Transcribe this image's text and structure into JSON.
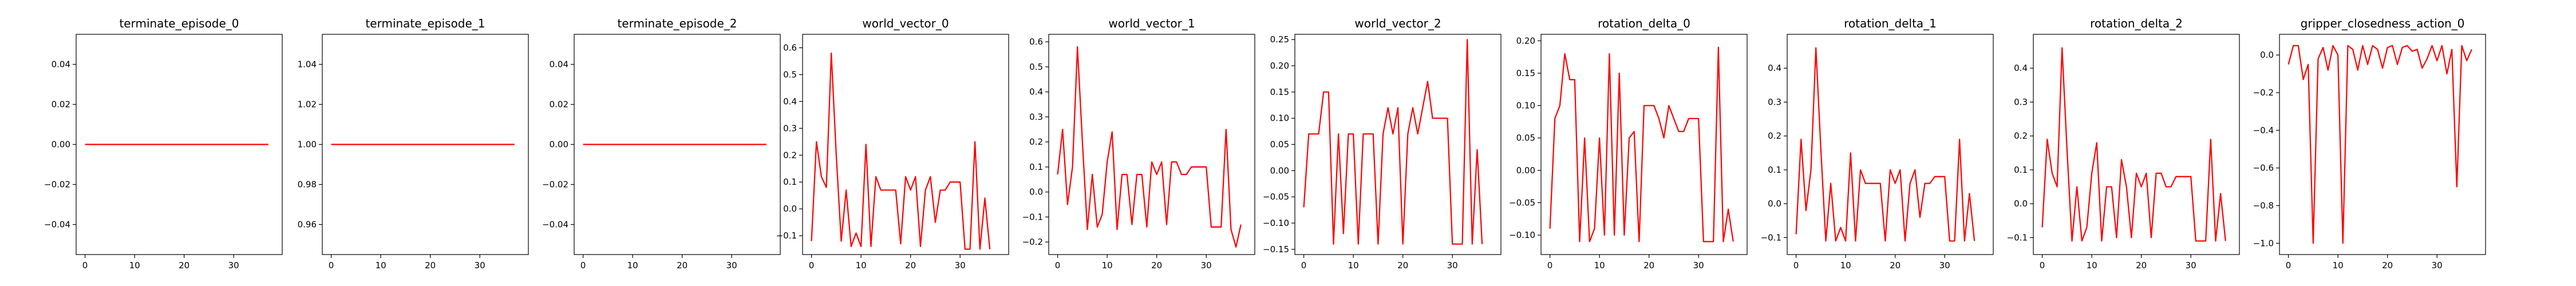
{
  "figure": {
    "background": "#ffffff",
    "line_color": "#ff0000"
  },
  "chart_data": [
    {
      "type": "line",
      "title": "terminate_episode_0",
      "xlim": [
        -1.8,
        39.8
      ],
      "ylim": [
        -0.055,
        0.055
      ],
      "xticks": [
        0,
        10,
        20,
        30
      ],
      "yticks": [
        -0.04,
        -0.02,
        0.0,
        0.02,
        0.04
      ],
      "ytick_labels": [
        "−0.04",
        "−0.02",
        "0.00",
        "0.02",
        "0.04"
      ],
      "series": [
        {
          "color": "#ff0000",
          "values": [
            0,
            0,
            0,
            0,
            0,
            0,
            0,
            0,
            0,
            0,
            0,
            0,
            0,
            0,
            0,
            0,
            0,
            0,
            0,
            0,
            0,
            0,
            0,
            0,
            0,
            0,
            0,
            0,
            0,
            0,
            0,
            0,
            0,
            0,
            0,
            0,
            0,
            0
          ]
        }
      ]
    },
    {
      "type": "line",
      "title": "terminate_episode_1",
      "xlim": [
        -1.8,
        39.8
      ],
      "ylim": [
        0.945,
        1.055
      ],
      "xticks": [
        0,
        10,
        20,
        30
      ],
      "yticks": [
        0.96,
        0.98,
        1.0,
        1.02,
        1.04
      ],
      "ytick_labels": [
        "0.96",
        "0.98",
        "1.00",
        "1.02",
        "1.04"
      ],
      "series": [
        {
          "color": "#ff0000",
          "values": [
            1,
            1,
            1,
            1,
            1,
            1,
            1,
            1,
            1,
            1,
            1,
            1,
            1,
            1,
            1,
            1,
            1,
            1,
            1,
            1,
            1,
            1,
            1,
            1,
            1,
            1,
            1,
            1,
            1,
            1,
            1,
            1,
            1,
            1,
            1,
            1,
            1,
            1
          ]
        }
      ]
    },
    {
      "type": "line",
      "title": "terminate_episode_2",
      "xlim": [
        -1.8,
        39.8
      ],
      "ylim": [
        -0.055,
        0.055
      ],
      "xticks": [
        0,
        10,
        20,
        30
      ],
      "yticks": [
        -0.04,
        -0.02,
        0.0,
        0.02,
        0.04
      ],
      "ytick_labels": [
        "−0.04",
        "−0.02",
        "0.00",
        "0.02",
        "0.04"
      ],
      "series": [
        {
          "color": "#ff0000",
          "values": [
            0,
            0,
            0,
            0,
            0,
            0,
            0,
            0,
            0,
            0,
            0,
            0,
            0,
            0,
            0,
            0,
            0,
            0,
            0,
            0,
            0,
            0,
            0,
            0,
            0,
            0,
            0,
            0,
            0,
            0,
            0,
            0,
            0,
            0,
            0,
            0,
            0,
            0
          ]
        }
      ]
    },
    {
      "type": "line",
      "title": "world_vector_0",
      "xlim": [
        -1.8,
        39.8
      ],
      "ylim": [
        -0.17,
        0.65
      ],
      "xticks": [
        0,
        10,
        20,
        30
      ],
      "yticks": [
        -0.1,
        0.0,
        0.1,
        0.2,
        0.3,
        0.4,
        0.5,
        0.6
      ],
      "ytick_labels": [
        "−0.1",
        "0.0",
        "0.1",
        "0.2",
        "0.3",
        "0.4",
        "0.5",
        "0.6"
      ],
      "series": [
        {
          "color": "#ff0000",
          "values": [
            -0.12,
            0.25,
            0.12,
            0.08,
            0.58,
            0.2,
            -0.12,
            0.07,
            -0.14,
            -0.09,
            -0.14,
            0.24,
            -0.14,
            0.12,
            0.07,
            0.07,
            0.07,
            0.07,
            -0.13,
            0.12,
            0.07,
            0.12,
            -0.14,
            0.07,
            0.12,
            -0.05,
            0.07,
            0.07,
            0.1,
            0.1,
            0.1,
            -0.15,
            -0.15,
            0.25,
            -0.15,
            0.04,
            -0.15
          ]
        }
      ]
    },
    {
      "type": "line",
      "title": "world_vector_1",
      "xlim": [
        -1.8,
        39.8
      ],
      "ylim": [
        -0.25,
        0.63
      ],
      "xticks": [
        0,
        10,
        20,
        30
      ],
      "yticks": [
        -0.2,
        -0.1,
        0.0,
        0.1,
        0.2,
        0.3,
        0.4,
        0.5,
        0.6
      ],
      "ytick_labels": [
        "−0.2",
        "−0.1",
        "0.0",
        "0.1",
        "0.2",
        "0.3",
        "0.4",
        "0.5",
        "0.6"
      ],
      "series": [
        {
          "color": "#ff0000",
          "values": [
            0.07,
            0.25,
            -0.05,
            0.1,
            0.58,
            0.2,
            -0.15,
            0.07,
            -0.14,
            -0.09,
            0.12,
            0.24,
            -0.15,
            0.07,
            0.07,
            -0.13,
            0.07,
            0.07,
            -0.14,
            0.12,
            0.07,
            0.12,
            -0.13,
            0.12,
            0.12,
            0.07,
            0.07,
            0.1,
            0.1,
            0.1,
            0.1,
            -0.14,
            -0.14,
            -0.14,
            0.25,
            -0.15,
            -0.22,
            -0.13
          ]
        }
      ]
    },
    {
      "type": "line",
      "title": "world_vector_2",
      "xlim": [
        -1.8,
        39.8
      ],
      "ylim": [
        -0.16,
        0.26
      ],
      "xticks": [
        0,
        10,
        20,
        30
      ],
      "yticks": [
        -0.15,
        -0.1,
        -0.05,
        0.0,
        0.05,
        0.1,
        0.15,
        0.2,
        0.25
      ],
      "ytick_labels": [
        "−0.15",
        "−0.10",
        "−0.05",
        "0.00",
        "0.05",
        "0.10",
        "0.15",
        "0.20",
        "0.25"
      ],
      "series": [
        {
          "color": "#ff0000",
          "values": [
            -0.07,
            0.07,
            0.07,
            0.07,
            0.15,
            0.15,
            -0.14,
            0.07,
            -0.12,
            0.07,
            0.07,
            -0.14,
            0.07,
            0.07,
            0.07,
            -0.14,
            0.07,
            0.12,
            0.07,
            0.12,
            -0.14,
            0.07,
            0.12,
            0.07,
            0.12,
            0.17,
            0.1,
            0.1,
            0.1,
            0.1,
            -0.14,
            -0.14,
            -0.14,
            0.25,
            -0.14,
            0.04,
            -0.14
          ]
        }
      ]
    },
    {
      "type": "line",
      "title": "rotation_delta_0",
      "xlim": [
        -1.8,
        39.8
      ],
      "ylim": [
        -0.13,
        0.21
      ],
      "xticks": [
        0,
        10,
        20,
        30
      ],
      "yticks": [
        -0.1,
        -0.05,
        0.0,
        0.05,
        0.1,
        0.15,
        0.2
      ],
      "ytick_labels": [
        "−0.10",
        "−0.05",
        "0.00",
        "0.05",
        "0.10",
        "0.15",
        "0.20"
      ],
      "series": [
        {
          "color": "#ff0000",
          "values": [
            -0.09,
            0.08,
            0.1,
            0.18,
            0.14,
            0.14,
            -0.11,
            0.05,
            -0.11,
            -0.09,
            0.05,
            -0.1,
            0.18,
            -0.1,
            0.15,
            -0.1,
            0.05,
            0.06,
            -0.11,
            0.1,
            0.1,
            0.1,
            0.08,
            0.05,
            0.1,
            0.08,
            0.06,
            0.06,
            0.08,
            0.08,
            0.08,
            -0.11,
            -0.11,
            -0.11,
            0.19,
            -0.11,
            -0.06,
            -0.11
          ]
        }
      ]
    },
    {
      "type": "line",
      "title": "rotation_delta_1",
      "xlim": [
        -1.8,
        39.8
      ],
      "ylim": [
        -0.15,
        0.5
      ],
      "xticks": [
        0,
        10,
        20,
        30
      ],
      "yticks": [
        -0.1,
        0.0,
        0.1,
        0.2,
        0.3,
        0.4
      ],
      "ytick_labels": [
        "−0.1",
        "0.0",
        "0.1",
        "0.2",
        "0.3",
        "0.4"
      ],
      "series": [
        {
          "color": "#ff0000",
          "values": [
            -0.09,
            0.19,
            -0.02,
            0.1,
            0.46,
            0.16,
            -0.11,
            0.06,
            -0.11,
            -0.07,
            -0.11,
            0.15,
            -0.11,
            0.1,
            0.06,
            0.06,
            0.06,
            0.06,
            -0.11,
            0.1,
            0.06,
            0.1,
            -0.11,
            0.06,
            0.1,
            -0.04,
            0.06,
            0.06,
            0.08,
            0.08,
            0.08,
            -0.11,
            -0.11,
            0.19,
            -0.11,
            0.03,
            -0.11
          ]
        }
      ]
    },
    {
      "type": "line",
      "title": "rotation_delta_2",
      "xlim": [
        -1.8,
        39.8
      ],
      "ylim": [
        -0.15,
        0.5
      ],
      "xticks": [
        0,
        10,
        20,
        30
      ],
      "yticks": [
        -0.1,
        0.0,
        0.1,
        0.2,
        0.3,
        0.4
      ],
      "ytick_labels": [
        "−0.1",
        "0.0",
        "0.1",
        "0.2",
        "0.3",
        "0.4"
      ],
      "series": [
        {
          "color": "#ff0000",
          "values": [
            -0.07,
            0.19,
            0.09,
            0.05,
            0.46,
            0.16,
            -0.11,
            0.05,
            -0.11,
            -0.07,
            0.09,
            0.18,
            -0.11,
            0.05,
            0.05,
            -0.1,
            0.13,
            0.05,
            -0.1,
            0.09,
            0.05,
            0.09,
            -0.1,
            0.09,
            0.09,
            0.05,
            0.05,
            0.08,
            0.08,
            0.08,
            0.08,
            -0.11,
            -0.11,
            -0.11,
            0.19,
            -0.11,
            0.03,
            -0.11
          ]
        }
      ]
    },
    {
      "type": "line",
      "title": "gripper_closedness_action_0",
      "xlim": [
        -1.8,
        39.8
      ],
      "ylim": [
        -1.06,
        0.11
      ],
      "xticks": [
        0,
        10,
        20,
        30
      ],
      "yticks": [
        -1.0,
        -0.8,
        -0.6,
        -0.4,
        -0.2,
        0.0
      ],
      "ytick_labels": [
        "−1.0",
        "−0.8",
        "−0.6",
        "−0.4",
        "−0.2",
        "0.0"
      ],
      "series": [
        {
          "color": "#ff0000",
          "values": [
            -0.05,
            0.05,
            0.05,
            -0.13,
            -0.05,
            -1.0,
            -0.02,
            0.04,
            -0.08,
            0.05,
            0.0,
            -1.0,
            0.05,
            0.03,
            -0.08,
            0.05,
            -0.05,
            0.05,
            0.03,
            -0.07,
            0.04,
            0.05,
            -0.05,
            0.04,
            0.05,
            0.02,
            0.03,
            -0.07,
            -0.02,
            0.05,
            -0.03,
            0.05,
            -0.1,
            0.03,
            -0.7,
            0.05,
            -0.03,
            0.03
          ]
        }
      ]
    }
  ]
}
